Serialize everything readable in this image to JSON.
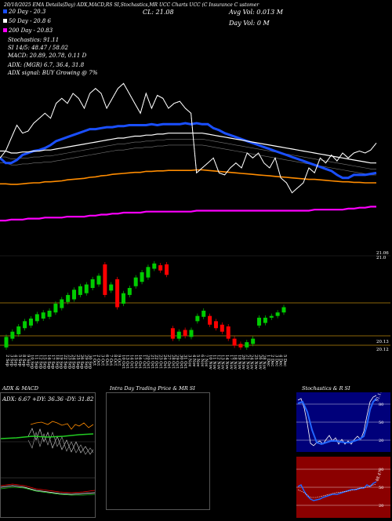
{
  "header": {
    "line1": "20/10/2025 EMA Details(Day) ADX,MACD,RS     SI,Stochastics,MR    UCC Charts UCC      (C                    Insurance C           ustomer",
    "cl_label": "CL: 21.08",
    "avg_vol": "Avg Vol: 0.013  M",
    "day_vol": "Day Vol: 0    M",
    "ema20": "20  Day - 20.3",
    "ema50": "50  Day - 20.8             6",
    "ema200": "200  Day - 20.83",
    "stoch": "Stochastics: 91.11",
    "si": "SI 14/5: 48.47 / 58.02",
    "macd": "MACD: 20.89, 20.78, 0.11 D",
    "adx": "ADX:                                     (MGR) 6.7,  36.4,  31.8",
    "adx_signal": "ADX  signal:                            BUY Growing @ 7%"
  },
  "colors": {
    "ema20": "#1a4fff",
    "ema50": "#ffffff",
    "ema100": "#ff8c00",
    "ema200": "#ff00ff",
    "up": "#00cc00",
    "down": "#ff0000",
    "level": "#b8860b"
  },
  "price_labels": {
    "top": "21.06",
    "top2": "21.0",
    "low1": "20.13",
    "low2": "20.12"
  },
  "chart_data": {
    "type": "line",
    "x": [
      "2 Sep",
      "3 Sep",
      "4 Sep",
      "5 Sep",
      "8 Sep",
      "9 Sep",
      "10 Sep",
      "11 Sep",
      "12 Sep",
      "15 Sep",
      "16 Sep",
      "17 Sep",
      "18 Sep",
      "19 Sep",
      "22 Sep",
      "23 Sep",
      "24 Sep",
      "25 Sep",
      "26 Sep",
      "29 Sep",
      "30 Sep",
      "1 Oct",
      "2 Oct",
      "3 Oct",
      "6 Oct",
      "7 Oct",
      "8 Oct",
      "9 Oct",
      "10 Oct",
      "13 Oct",
      "14 Oct",
      "15 Oct",
      "16 Oct",
      "17 Oct",
      "20 Oct",
      "21 Oct",
      "22 Oct",
      "23 Oct",
      "24 Oct",
      "27 Oct",
      "28 Oct",
      "29 Oct",
      "30 Oct",
      "31 Oct",
      "3 Nov",
      "4 Nov",
      "5 Nov",
      "6 Nov",
      "7 Nov",
      "10 Nov",
      "11 Nov",
      "12 Nov",
      "13 Nov",
      "14 Nov",
      "17 Nov",
      "18 Nov",
      "19 Nov",
      "20 Nov",
      "21 Nov",
      "24 Nov",
      "25 Nov",
      "26 Nov",
      "28 Nov",
      "1 Dec",
      "2 Dec",
      "3 Dec",
      "4 Dec",
      "5 Dec"
    ],
    "series": [
      {
        "name": "20 Day",
        "values": [
          20.55,
          20.5,
          20.5,
          20.53,
          20.58,
          20.6,
          20.62,
          20.63,
          20.65,
          20.68,
          20.72,
          20.74,
          20.76,
          20.78,
          20.8,
          20.82,
          20.84,
          20.84,
          20.85,
          20.86,
          20.86,
          20.87,
          20.87,
          20.88,
          20.88,
          20.88,
          20.88,
          20.89,
          20.88,
          20.89,
          20.89,
          20.89,
          20.89,
          20.9,
          20.89,
          20.9,
          20.89,
          20.89,
          20.85,
          20.83,
          20.8,
          20.78,
          20.76,
          20.74,
          20.72,
          20.7,
          20.68,
          20.66,
          20.64,
          20.62,
          20.6,
          20.58,
          20.56,
          20.54,
          20.52,
          20.5,
          20.48,
          20.46,
          20.44,
          20.42,
          20.38,
          20.35,
          20.35,
          20.38,
          20.38,
          20.38,
          20.39,
          20.4
        ]
      },
      {
        "name": "50 Day",
        "values": [
          20.62,
          20.62,
          20.6,
          20.6,
          20.61,
          20.61,
          20.62,
          20.62,
          20.63,
          20.63,
          20.64,
          20.65,
          20.66,
          20.67,
          20.68,
          20.69,
          20.7,
          20.71,
          20.72,
          20.73,
          20.74,
          20.75,
          20.75,
          20.76,
          20.77,
          20.77,
          20.78,
          20.78,
          20.79,
          20.79,
          20.8,
          20.8,
          20.8,
          20.8,
          20.8,
          20.8,
          20.8,
          20.79,
          20.78,
          20.77,
          20.76,
          20.75,
          20.74,
          20.73,
          20.72,
          20.71,
          20.7,
          20.69,
          20.68,
          20.67,
          20.66,
          20.65,
          20.64,
          20.63,
          20.62,
          20.61,
          20.6,
          20.59,
          20.58,
          20.57,
          20.56,
          20.55,
          20.54,
          20.53,
          20.52,
          20.51,
          20.5,
          20.5
        ]
      },
      {
        "name": "200 Day",
        "values": [
          19.92,
          19.92,
          19.93,
          19.93,
          19.93,
          19.94,
          19.94,
          19.94,
          19.95,
          19.95,
          19.95,
          19.95,
          19.96,
          19.96,
          19.96,
          19.96,
          19.97,
          19.97,
          19.98,
          19.98,
          19.99,
          19.99,
          20.0,
          20.0,
          20.0,
          20.0,
          20.01,
          20.01,
          20.01,
          20.01,
          20.01,
          20.01,
          20.01,
          20.01,
          20.01,
          20.02,
          20.02,
          20.02,
          20.02,
          20.02,
          20.02,
          20.02,
          20.02,
          20.02,
          20.02,
          20.02,
          20.02,
          20.02,
          20.02,
          20.02,
          20.02,
          20.02,
          20.02,
          20.02,
          20.02,
          20.02,
          20.03,
          20.03,
          20.03,
          20.03,
          20.03,
          20.03,
          20.04,
          20.04,
          20.05,
          20.05,
          20.06,
          20.06
        ]
      },
      {
        "name": "Price",
        "values": [
          20.55,
          20.62,
          20.75,
          20.88,
          20.8,
          20.82,
          20.9,
          20.95,
          21.0,
          20.95,
          21.1,
          21.15,
          21.1,
          21.2,
          21.15,
          21.05,
          21.2,
          21.25,
          21.2,
          21.05,
          21.15,
          21.25,
          21.3,
          21.2,
          21.1,
          21.0,
          21.2,
          21.05,
          21.18,
          21.15,
          21.05,
          21.1,
          21.12,
          21.05,
          21.0,
          20.4,
          20.45,
          20.5,
          20.55,
          20.4,
          20.38,
          20.45,
          20.5,
          20.45,
          20.6,
          20.55,
          20.6,
          20.5,
          20.45,
          20.55,
          20.35,
          20.3,
          20.2,
          20.25,
          20.3,
          20.45,
          20.4,
          20.55,
          20.5,
          20.58,
          20.52,
          20.6,
          20.55,
          20.6,
          20.62,
          20.6,
          20.63,
          20.7
        ]
      }
    ],
    "candles": [
      {
        "o": 20.0,
        "c": 20.12,
        "up": true
      },
      {
        "o": 20.1,
        "c": 20.18,
        "up": true
      },
      {
        "o": 20.15,
        "c": 20.24,
        "up": true
      },
      {
        "o": 20.22,
        "c": 20.3,
        "up": true
      },
      {
        "o": 20.25,
        "c": 20.33,
        "up": true
      },
      {
        "o": 20.3,
        "c": 20.38,
        "up": true
      },
      {
        "o": 20.33,
        "c": 20.4,
        "up": true
      },
      {
        "o": 20.35,
        "c": 20.42,
        "up": true
      },
      {
        "o": 20.4,
        "c": 20.5,
        "up": true
      },
      {
        "o": 20.45,
        "c": 20.55,
        "up": true
      },
      {
        "o": 20.52,
        "c": 20.6,
        "up": true
      },
      {
        "o": 20.55,
        "c": 20.66,
        "up": true
      },
      {
        "o": 20.6,
        "c": 20.7,
        "up": true
      },
      {
        "o": 20.62,
        "c": 20.72,
        "up": true
      },
      {
        "o": 20.68,
        "c": 20.78,
        "up": true
      },
      {
        "o": 20.72,
        "c": 20.82,
        "up": true
      },
      {
        "o": 20.95,
        "c": 20.6,
        "up": false
      },
      {
        "o": 20.65,
        "c": 20.72,
        "up": true
      },
      {
        "o": 20.78,
        "c": 20.46,
        "up": false
      },
      {
        "o": 20.5,
        "c": 20.62,
        "up": true
      },
      {
        "o": 20.6,
        "c": 20.68,
        "up": true
      },
      {
        "o": 20.7,
        "c": 20.8,
        "up": true
      },
      {
        "o": 20.75,
        "c": 20.86,
        "up": true
      },
      {
        "o": 20.8,
        "c": 20.92,
        "up": true
      },
      {
        "o": 20.9,
        "c": 20.96,
        "up": true
      },
      {
        "o": 20.94,
        "c": 20.88,
        "up": false
      },
      {
        "o": 20.95,
        "c": 20.83,
        "up": false
      },
      {
        "o": 20.22,
        "c": 20.1,
        "up": false
      },
      {
        "o": 20.1,
        "c": 20.18,
        "up": true
      },
      {
        "o": 20.2,
        "c": 20.13,
        "up": false
      },
      {
        "o": 20.12,
        "c": 20.2,
        "up": true
      },
      {
        "o": 20.3,
        "c": 20.36,
        "up": true
      },
      {
        "o": 20.35,
        "c": 20.42,
        "up": true
      },
      {
        "o": 20.36,
        "c": 20.26,
        "up": false
      },
      {
        "o": 20.3,
        "c": 20.22,
        "up": false
      },
      {
        "o": 20.26,
        "c": 20.18,
        "up": false
      },
      {
        "o": 20.24,
        "c": 20.1,
        "up": false
      },
      {
        "o": 20.1,
        "c": 20.02,
        "up": false
      },
      {
        "o": 20.04,
        "c": 20.0,
        "up": false
      },
      {
        "o": 20.0,
        "c": 20.06,
        "up": true
      },
      {
        "o": 20.04,
        "c": 20.1,
        "up": true
      },
      {
        "o": 20.25,
        "c": 20.34,
        "up": true
      },
      {
        "o": 20.28,
        "c": 20.34,
        "up": true
      },
      {
        "o": 20.34,
        "c": 20.36,
        "up": true
      },
      {
        "o": 20.36,
        "c": 20.4,
        "up": true
      },
      {
        "o": 20.4,
        "c": 20.46,
        "up": true
      }
    ],
    "levels": [
      20.46,
      20.13,
      20.12
    ],
    "ylim": [
      19.85,
      21.35
    ]
  },
  "date_labels": [
    "2 Sep",
    "3 Sep",
    "4 Sep",
    "5 Sep",
    "8 Sep",
    "9 Sep",
    "10 Sep",
    "11 Sep",
    "12 Sep",
    "15 Sep",
    "16 Sep",
    "17 Sep",
    "18 Sep",
    "19 Sep",
    "22 Sep",
    "23 Sep",
    "24 Sep",
    "25 Sep",
    "26 Sep",
    "29 Sep",
    "30 Sep",
    "1 Oct",
    "2 Oct",
    "3 Oct",
    "6 Oct",
    "7 Oct",
    "8 Oct",
    "9 Oct",
    "10 Oct",
    "13 Oct",
    "14 Oct",
    "15 Oct",
    "16 Oct",
    "17 Oct",
    "20 Oct",
    "21 Oct",
    "22 Oct",
    "23 Oct",
    "24 Oct",
    "27 Oct",
    "28 Oct",
    "29 Oct",
    "30 Oct",
    "31 Oct",
    "3 Nov",
    "4 Nov",
    "5 Nov",
    "6 Nov",
    "7 Nov",
    "10 Nov",
    "11 Nov",
    "12 Nov",
    "13 Nov",
    "14 Nov",
    "17 Nov",
    "18 Nov",
    "19 Nov",
    "20 Nov",
    "21 Nov",
    "24 Nov",
    "25 Nov",
    "26 Nov",
    "28 Nov",
    "1 Dec",
    "2 Dec",
    "3 Dec",
    "4 Dec",
    "5 Dec"
  ],
  "panels": {
    "adx_title": "ADX  & MACD",
    "adx_values": "ADX: 6.67  +DY: 36.36  -DY: 31.82",
    "intra_title": "Intra  Day Trading Price  & MR                SI",
    "stoch_title": "Stochastics  & R                SI",
    "stoch_value": "91.11",
    "si_value": "48.47",
    "stoch_ticks": [
      "80",
      "50",
      "20"
    ],
    "si_ticks": [
      "80",
      "50",
      "20"
    ]
  }
}
